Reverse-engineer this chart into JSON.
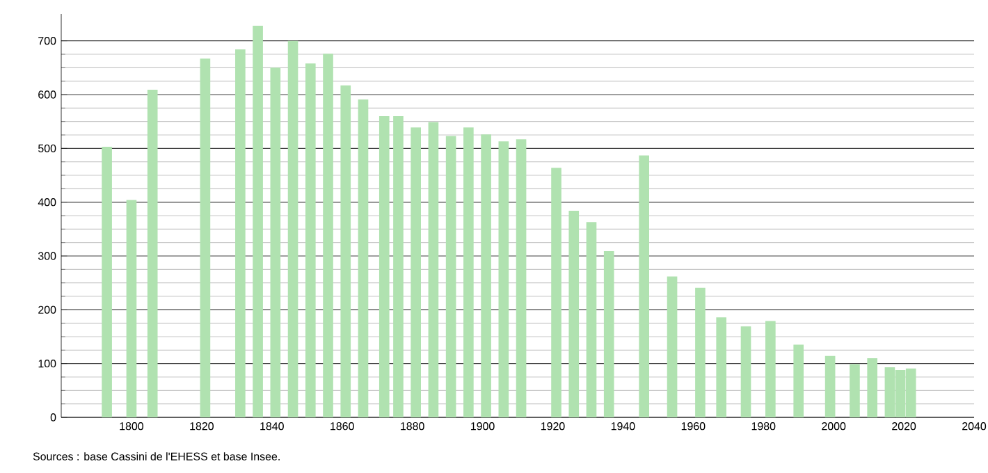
{
  "chart_data": {
    "type": "bar",
    "color": "#b0e2b0",
    "x": [
      "1793",
      "1800",
      "1806",
      "1821",
      "1831",
      "1836",
      "1841",
      "1846",
      "1851",
      "1856",
      "1861",
      "1866",
      "1872",
      "1876",
      "1881",
      "1886",
      "1891",
      "1896",
      "1901",
      "1906",
      "1911",
      "1921",
      "1926",
      "1931",
      "1936",
      "1946",
      "1954",
      "1962",
      "1968",
      "1975",
      "1982",
      "1990",
      "1999",
      "2006",
      "2011",
      "2016",
      "2019",
      "2022"
    ],
    "values": [
      503,
      404,
      609,
      667,
      684,
      728,
      650,
      700,
      658,
      676,
      617,
      591,
      560,
      560,
      539,
      549,
      523,
      539,
      526,
      513,
      517,
      464,
      384,
      363,
      309,
      487,
      262,
      241,
      186,
      169,
      179,
      135,
      114,
      99,
      110,
      93,
      88,
      91
    ],
    "xlim": [
      "1780",
      "2040"
    ],
    "xticks": [
      "1800",
      "1820",
      "1840",
      "1860",
      "1880",
      "1900",
      "1920",
      "1940",
      "1960",
      "1980",
      "2000",
      "2020",
      "2040"
    ],
    "ylim": [
      0,
      750
    ],
    "yticks": [
      0,
      100,
      200,
      300,
      400,
      500,
      600,
      700
    ],
    "grid": "y",
    "annotations": [
      "Sources : base Cassini de l'EHESS et base Insee."
    ]
  }
}
